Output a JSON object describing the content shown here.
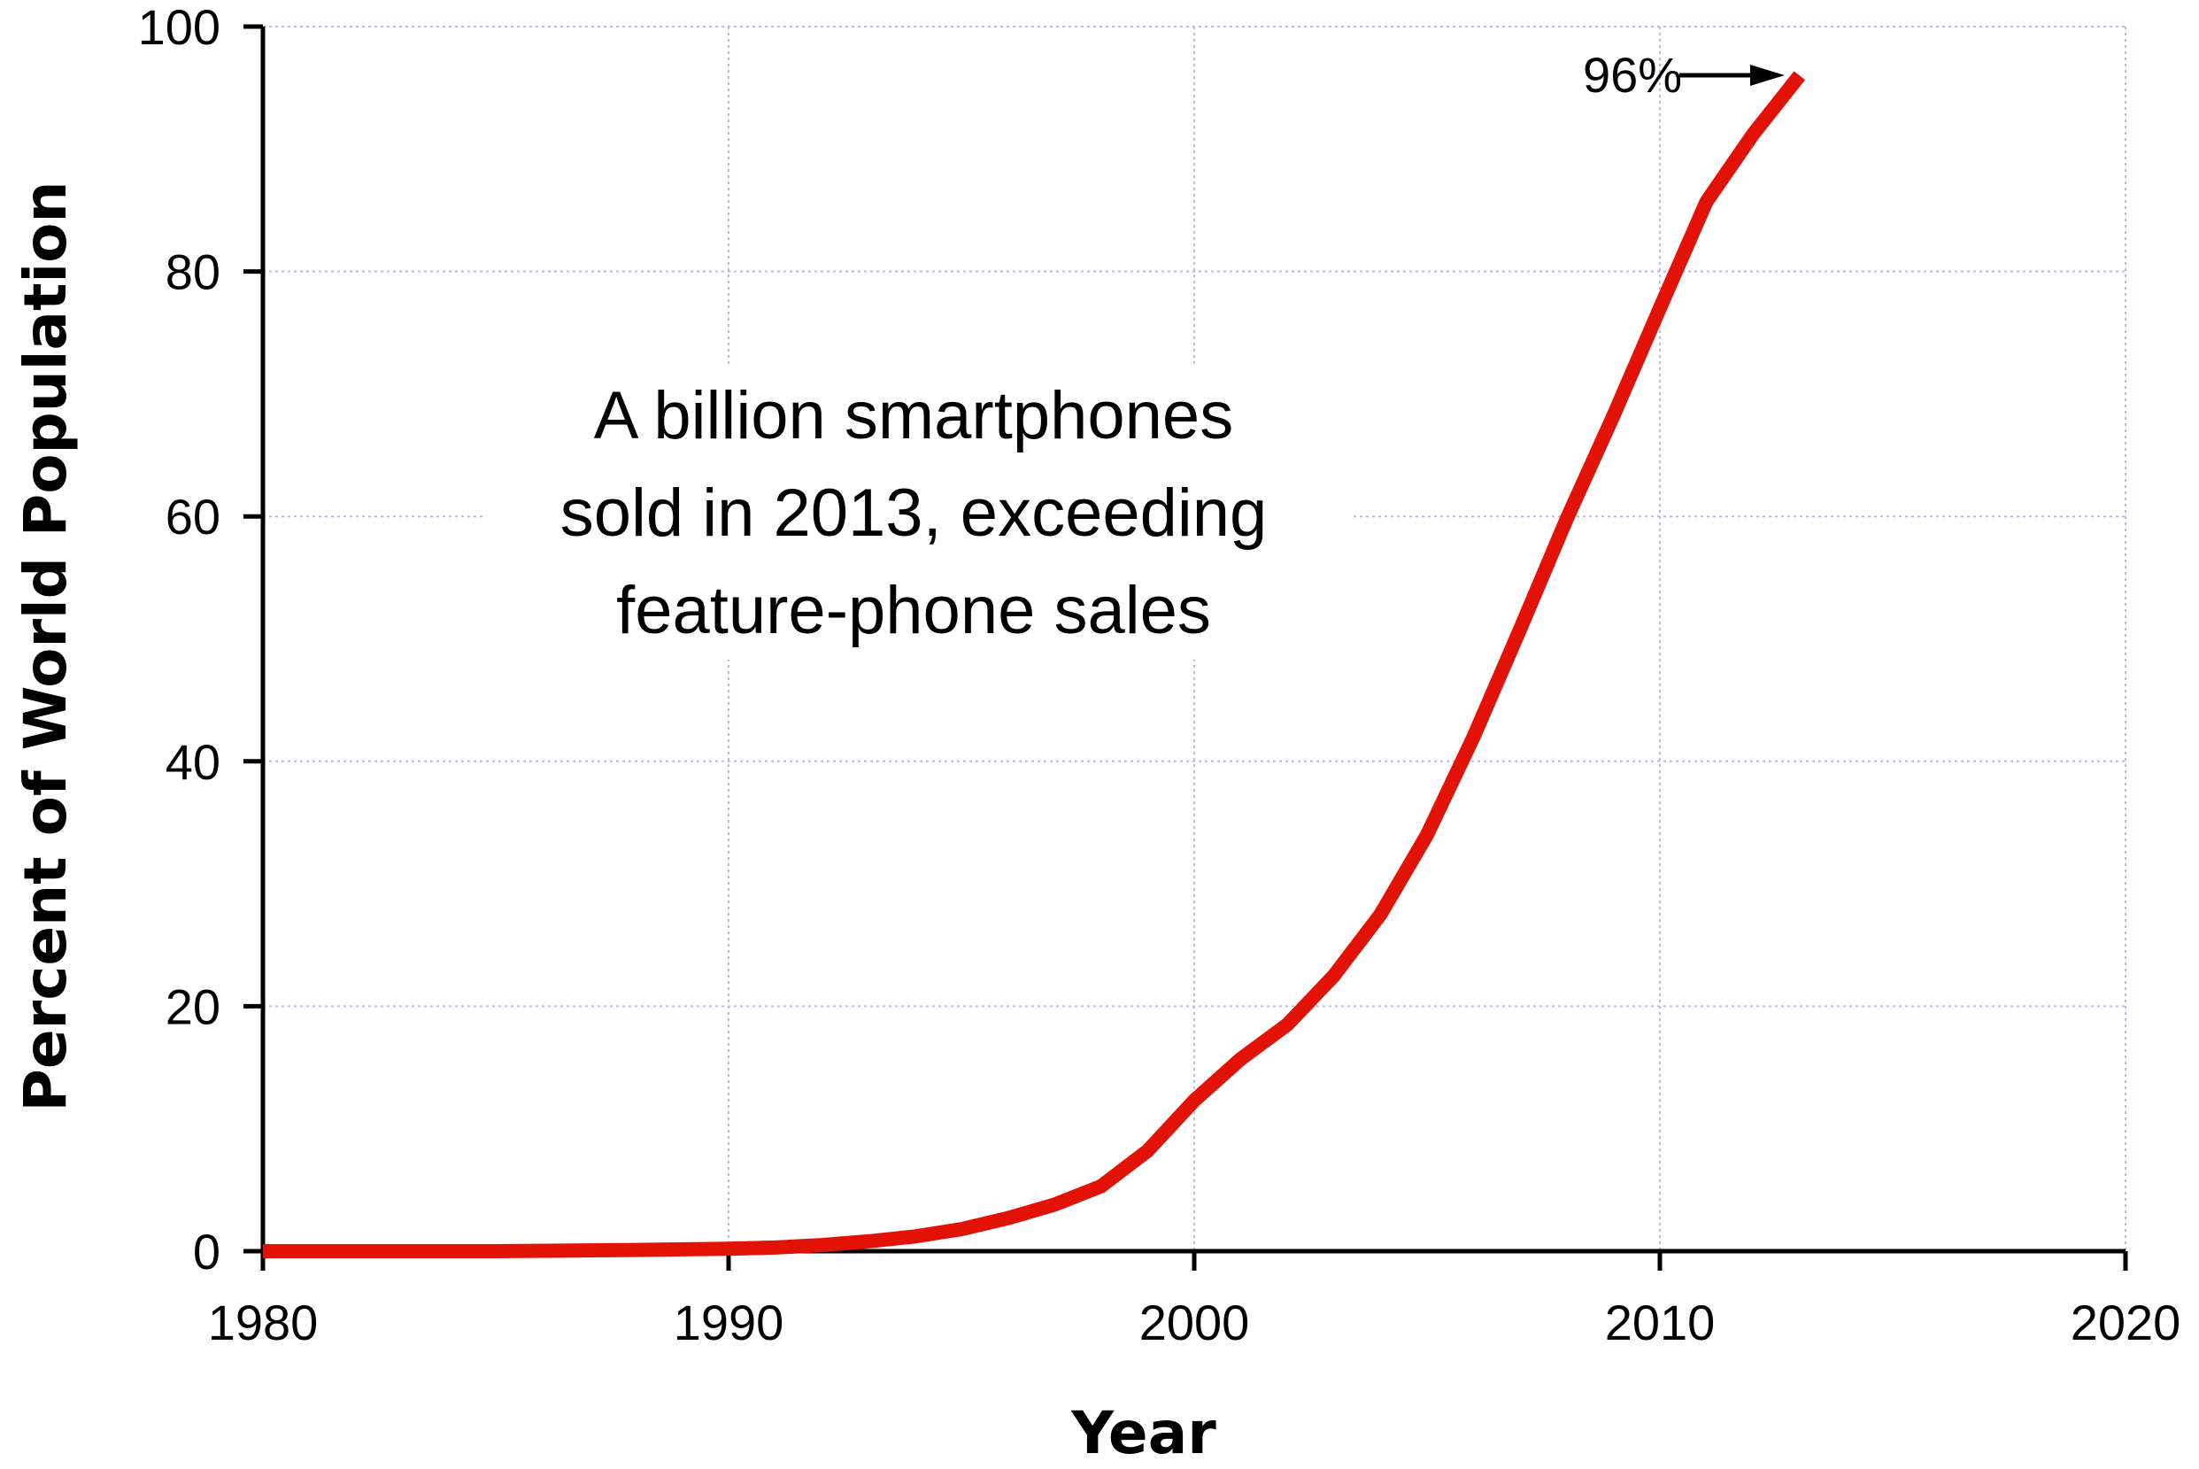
{
  "chart_data": {
    "type": "line",
    "title": "",
    "xlabel": "Year",
    "ylabel": "Percent of  World Population",
    "xlim": [
      1980,
      2020
    ],
    "ylim": [
      0,
      100
    ],
    "x_ticks": [
      "1980",
      "1990",
      "2000",
      "2010",
      "2020"
    ],
    "y_ticks": [
      "0",
      "20",
      "40",
      "60",
      "80",
      "100"
    ],
    "grid": true,
    "series_color": "#e31206",
    "x": [
      1980,
      1985,
      1988,
      1990,
      1991,
      1992,
      1993,
      1994,
      1995,
      1996,
      1997,
      1998,
      1999,
      2000,
      2001,
      2002,
      2003,
      2004,
      2005,
      2006,
      2007,
      2008,
      2009,
      2010,
      2011,
      2012,
      2013
    ],
    "values": [
      0,
      0,
      0.1,
      0.2,
      0.3,
      0.5,
      0.8,
      1.2,
      1.8,
      2.7,
      3.8,
      5.3,
      8.2,
      12.3,
      15.7,
      18.5,
      22.5,
      27.5,
      34.0,
      42.0,
      50.8,
      59.8,
      68.2,
      77.0,
      85.7,
      91.2,
      96.0
    ],
    "annotations": {
      "note_lines": [
        "A billion smartphones",
        "sold in 2013, exceeding",
        "feature-phone sales"
      ],
      "callout": "96%"
    }
  }
}
